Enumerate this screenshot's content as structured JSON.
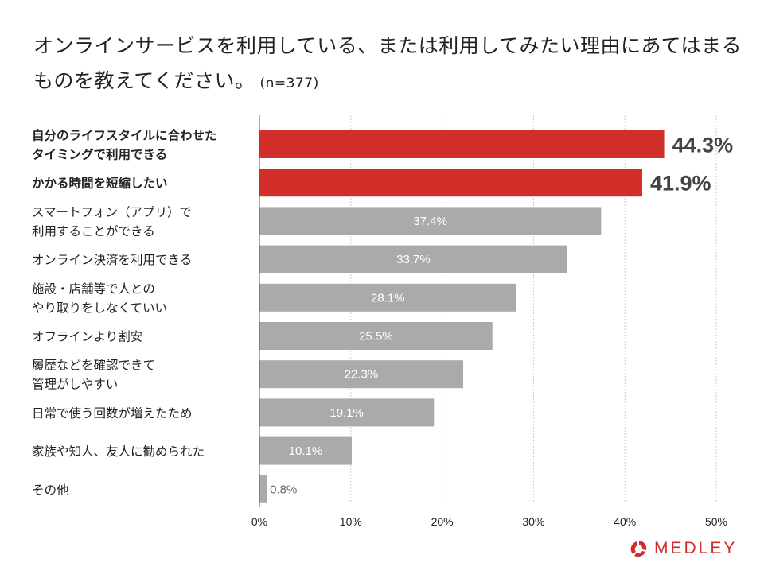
{
  "title": "オンラインサービスを利用している、または利用してみたい理由にあてはまるものを教えてください。",
  "sample_size": "(n=377)",
  "brand": {
    "name": "MEDLEY",
    "color": "#cf2e2e",
    "icon": "medley-logo-icon"
  },
  "chart_data": {
    "type": "bar",
    "orientation": "horizontal",
    "title": "オンラインサービスを利用している、または利用してみたい理由にあてはまるものを教えてください。",
    "subtitle": "(n=377)",
    "xlabel": "",
    "ylabel": "",
    "xlim": [
      0,
      50
    ],
    "xticks": [
      0,
      10,
      20,
      30,
      40,
      50
    ],
    "xtick_labels": [
      "0%",
      "10%",
      "20%",
      "30%",
      "40%",
      "50%"
    ],
    "grid": "vertical-dotted",
    "categories": [
      [
        "自分のライフスタイルに合わせた",
        "タイミングで利用できる"
      ],
      [
        "かかる時間を短縮したい"
      ],
      [
        "スマートフォン（アプリ）で",
        "利用することができる"
      ],
      [
        "オンライン決済を利用できる"
      ],
      [
        "施設・店舗等で人との",
        "やり取りをしなくていい"
      ],
      [
        "オフラインより割安"
      ],
      [
        "履歴などを確認できて",
        "管理がしやすい"
      ],
      [
        "日常で使う回数が増えたため"
      ],
      [
        "家族や知人、友人に勧められた"
      ],
      [
        "その他"
      ]
    ],
    "values": [
      44.3,
      41.9,
      37.4,
      33.7,
      28.1,
      25.5,
      22.3,
      19.1,
      10.1,
      0.8
    ],
    "labels": [
      "44.3%",
      "41.9%",
      "37.4%",
      "33.7%",
      "28.1%",
      "25.5%",
      "22.3%",
      "19.1%",
      "10.1%",
      "0.8%"
    ],
    "highlight_count": 2,
    "colors": {
      "highlight": "#d32f2a",
      "default": "#aaaaaa"
    }
  }
}
